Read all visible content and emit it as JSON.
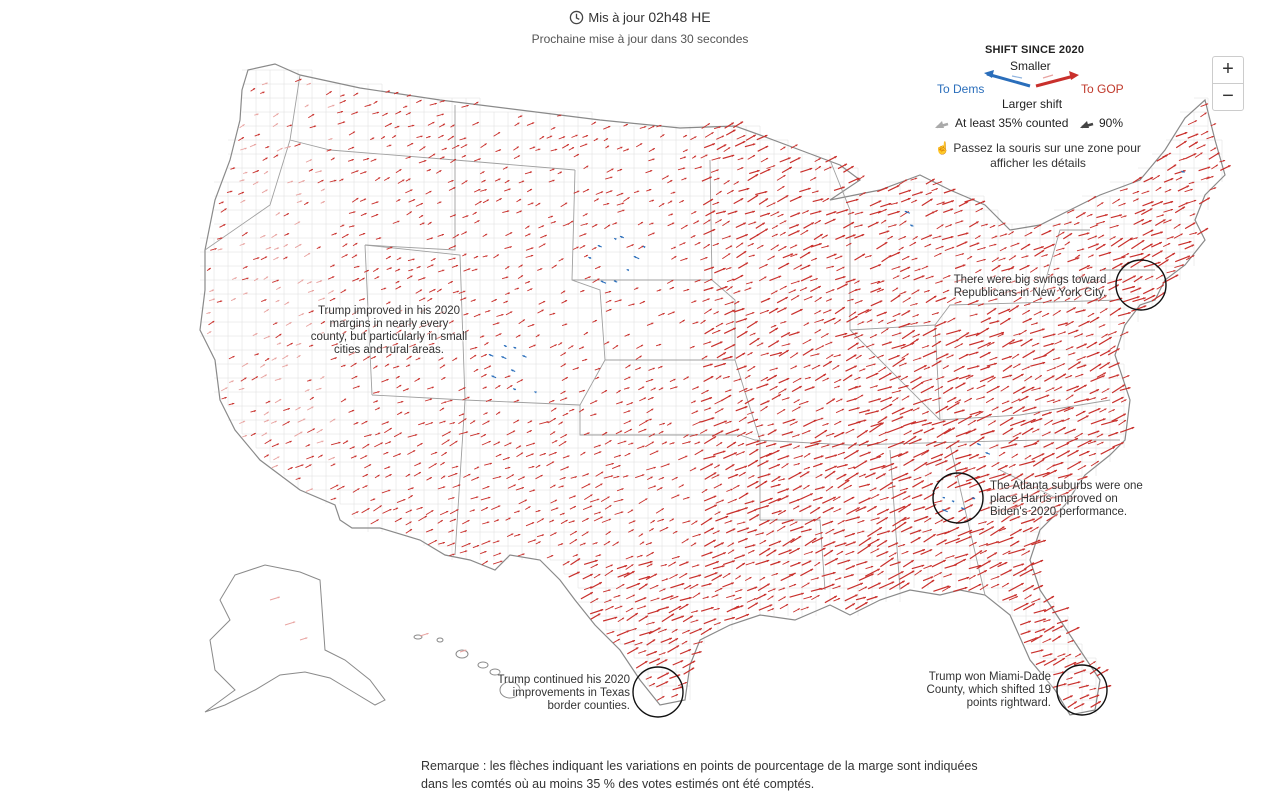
{
  "header": {
    "updated_label": "Mis à jour",
    "updated_time": "02h48 HE",
    "next_update": "Prochaine mise à jour dans 30 secondes"
  },
  "legend": {
    "title": "SHIFT SINCE 2020",
    "smaller": "Smaller",
    "to_dems": "To Dems",
    "to_gop": "To GOP",
    "larger": "Larger shift",
    "at_least": "At least 35% counted",
    "ninety": "90%",
    "hover_hint": "Passez la souris sur une zone pour afficher les détails"
  },
  "zoom": {
    "in": "+",
    "out": "−"
  },
  "annotations": {
    "west": "Trump improved in his 2020 margins in nearly every county, but particularly in small cities and rural areas.",
    "ny": "There were big swings toward Republicans in New York City.",
    "atlanta": "The Atlanta suburbs were one place Harris improved on Biden's 2020 performance.",
    "texas": "Trump continued his 2020 improvements in Texas border counties.",
    "miami": "Trump won Miami-Dade County, which shifted 19 points rightward."
  },
  "remark": "Remarque : les flèches indiquant les variations en points de pourcentage de la marge sont indiquées dans les comtés où au moins 35 % des votes estimés ont été comptés.",
  "colors": {
    "gop": "#c9302c",
    "gop_light": "#e8a3a0",
    "dems": "#2a6ebb",
    "county_line": "#d6d6d6",
    "state_line": "#9a9a9a"
  }
}
